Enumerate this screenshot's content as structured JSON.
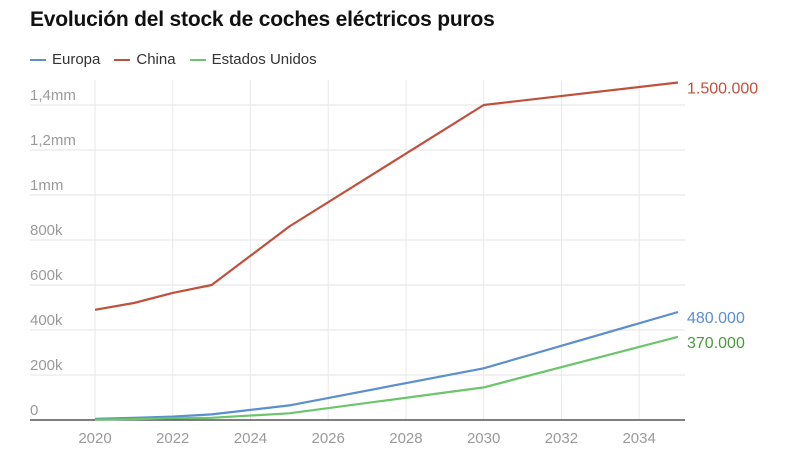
{
  "chart_data": {
    "type": "line",
    "title": "Evolución del stock de coches eléctricos puros",
    "xlabel": "",
    "ylabel": "",
    "x_ticks": [
      "2020",
      "2022",
      "2024",
      "2026",
      "2028",
      "2030",
      "2032",
      "2034"
    ],
    "y_ticks": [
      {
        "value": 0,
        "label": "0"
      },
      {
        "value": 200000,
        "label": "200k"
      },
      {
        "value": 400000,
        "label": "400k"
      },
      {
        "value": 600000,
        "label": "600k"
      },
      {
        "value": 800000,
        "label": "800k"
      },
      {
        "value": 1000000,
        "label": "1mm"
      },
      {
        "value": 1200000,
        "label": "1,2mm"
      },
      {
        "value": 1400000,
        "label": "1,4mm"
      }
    ],
    "xlim": [
      2020,
      2035
    ],
    "ylim": [
      0,
      1400000
    ],
    "grid": true,
    "legend_position": "top-left",
    "series": [
      {
        "name": "Europa",
        "color": "#5b8fd0",
        "end_label": "480.000",
        "points": [
          [
            2020,
            5000
          ],
          [
            2021,
            10000
          ],
          [
            2022,
            15000
          ],
          [
            2023,
            25000
          ],
          [
            2025,
            65000
          ],
          [
            2030,
            230000
          ],
          [
            2035,
            480000
          ]
        ]
      },
      {
        "name": "China",
        "color": "#c0503c",
        "end_label": "1.500.000",
        "points": [
          [
            2020,
            490000
          ],
          [
            2021,
            520000
          ],
          [
            2022,
            565000
          ],
          [
            2023,
            600000
          ],
          [
            2025,
            860000
          ],
          [
            2030,
            1400000
          ],
          [
            2035,
            1500000
          ]
        ]
      },
      {
        "name": "Estados Unidos",
        "color": "#6cc46c",
        "end_label_color": "#4a9a3c",
        "end_label": "370.000",
        "points": [
          [
            2020,
            2000
          ],
          [
            2021,
            4000
          ],
          [
            2022,
            7000
          ],
          [
            2023,
            10000
          ],
          [
            2025,
            30000
          ],
          [
            2030,
            145000
          ],
          [
            2035,
            370000
          ]
        ]
      }
    ]
  }
}
